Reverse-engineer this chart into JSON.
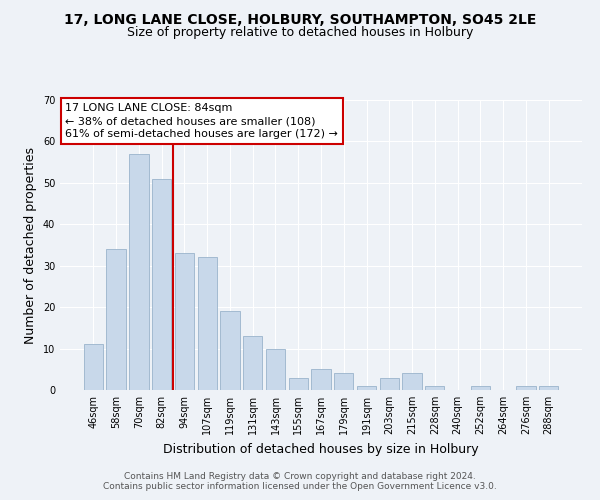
{
  "title": "17, LONG LANE CLOSE, HOLBURY, SOUTHAMPTON, SO45 2LE",
  "subtitle": "Size of property relative to detached houses in Holbury",
  "xlabel": "Distribution of detached houses by size in Holbury",
  "ylabel": "Number of detached properties",
  "categories": [
    "46sqm",
    "58sqm",
    "70sqm",
    "82sqm",
    "94sqm",
    "107sqm",
    "119sqm",
    "131sqm",
    "143sqm",
    "155sqm",
    "167sqm",
    "179sqm",
    "191sqm",
    "203sqm",
    "215sqm",
    "228sqm",
    "240sqm",
    "252sqm",
    "264sqm",
    "276sqm",
    "288sqm"
  ],
  "values": [
    11,
    34,
    57,
    51,
    33,
    32,
    19,
    13,
    10,
    3,
    5,
    4,
    1,
    3,
    4,
    1,
    0,
    1,
    0,
    1,
    1
  ],
  "bar_color": "#c8d8ea",
  "bar_edge_color": "#9ab4cc",
  "vline_color": "#cc0000",
  "vline_pos": 3.5,
  "annotation_text": "17 LONG LANE CLOSE: 84sqm\n← 38% of detached houses are smaller (108)\n61% of semi-detached houses are larger (172) →",
  "annotation_box_facecolor": "#ffffff",
  "annotation_box_edgecolor": "#cc0000",
  "ylim": [
    0,
    70
  ],
  "yticks": [
    0,
    10,
    20,
    30,
    40,
    50,
    60,
    70
  ],
  "title_fontsize": 10,
  "subtitle_fontsize": 9,
  "axis_label_fontsize": 9,
  "tick_fontsize": 7,
  "annotation_fontsize": 8,
  "footer_fontsize": 6.5,
  "background_color": "#eef2f7",
  "grid_color": "#ffffff",
  "footer_line1": "Contains HM Land Registry data © Crown copyright and database right 2024.",
  "footer_line2": "Contains public sector information licensed under the Open Government Licence v3.0."
}
